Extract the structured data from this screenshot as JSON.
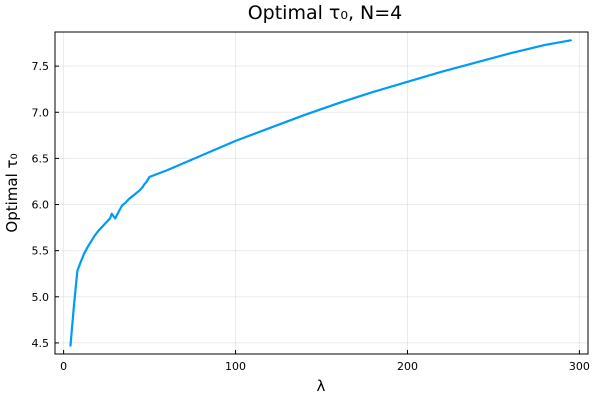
{
  "chart_data": {
    "type": "line",
    "title": "Optimal τ₀, N=4",
    "xlabel": "λ",
    "ylabel": "Optimal τ₀",
    "xlim": [
      -5,
      305
    ],
    "ylim": [
      4.38,
      7.87
    ],
    "xticks": [
      0,
      100,
      200,
      300
    ],
    "xtick_labels": [
      "0",
      "100",
      "200",
      "300"
    ],
    "yticks": [
      4.5,
      5.0,
      5.5,
      6.0,
      6.5,
      7.0,
      7.5
    ],
    "ytick_labels": [
      "4.5",
      "5.0",
      "5.5",
      "6.0",
      "6.5",
      "7.0",
      "7.5"
    ],
    "grid": true,
    "legend": "none",
    "color": "#009af9",
    "series": [
      {
        "x": [
          4,
          6,
          8,
          10,
          12,
          14,
          16,
          18,
          20,
          22,
          24,
          26,
          27,
          28,
          30,
          32,
          34,
          36,
          38,
          40,
          42,
          44,
          46,
          47,
          48,
          49,
          50,
          60,
          70,
          80,
          90,
          100,
          120,
          140,
          160,
          180,
          200,
          220,
          240,
          260,
          280,
          295
        ],
        "y": [
          4.47,
          4.9,
          5.28,
          5.38,
          5.47,
          5.54,
          5.6,
          5.66,
          5.71,
          5.75,
          5.79,
          5.83,
          5.85,
          5.9,
          5.85,
          5.92,
          5.99,
          6.02,
          6.06,
          6.09,
          6.12,
          6.15,
          6.19,
          6.22,
          6.24,
          6.27,
          6.3,
          6.37,
          6.45,
          6.53,
          6.61,
          6.69,
          6.83,
          6.97,
          7.1,
          7.22,
          7.33,
          7.44,
          7.54,
          7.64,
          7.73,
          7.78
        ]
      }
    ]
  }
}
